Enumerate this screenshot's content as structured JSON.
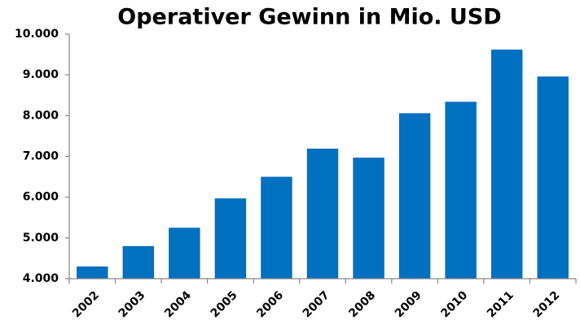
{
  "chart_data": {
    "type": "bar",
    "title": "Operativer Gewinn in Mio. USD",
    "categories": [
      "2002",
      "2003",
      "2004",
      "2005",
      "2006",
      "2007",
      "2008",
      "2009",
      "2010",
      "2011",
      "2012"
    ],
    "values": [
      4300,
      4800,
      5250,
      5970,
      6500,
      7190,
      6970,
      8060,
      8340,
      9620,
      8960
    ],
    "color": "#0070c0",
    "ylim": [
      4000,
      10000
    ],
    "yticks": [
      {
        "value": 4000,
        "label": "4.000"
      },
      {
        "value": 5000,
        "label": "5.000"
      },
      {
        "value": 6000,
        "label": "6.000"
      },
      {
        "value": 7000,
        "label": "7.000"
      },
      {
        "value": 8000,
        "label": "8.000"
      },
      {
        "value": 9000,
        "label": "9.000"
      },
      {
        "value": 10000,
        "label": "10.000"
      }
    ],
    "grid": false
  }
}
